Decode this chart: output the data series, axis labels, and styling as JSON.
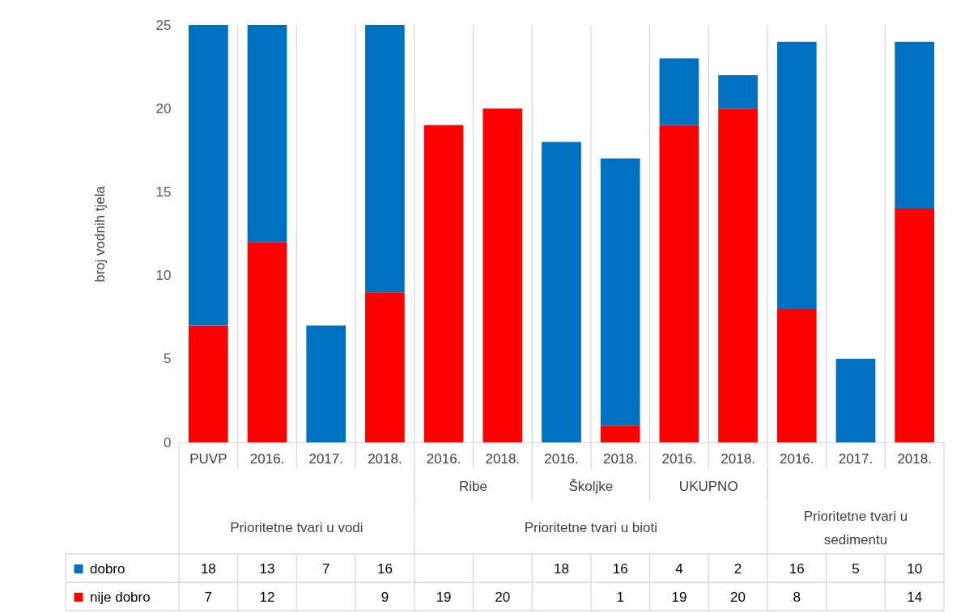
{
  "chart_data": {
    "type": "bar",
    "stacked": true,
    "ylabel": "broj vodnih tjela",
    "categories": [
      "PUVP",
      "2016.",
      "2017.",
      "2018.",
      "2016.",
      "2018.",
      "2016.",
      "2018.",
      "2016.",
      "2018.",
      "2016.",
      "2017.",
      "2018."
    ],
    "series": [
      {
        "name": "nije dobro",
        "color": "#ff0000",
        "values": [
          7,
          12,
          null,
          9,
          19,
          20,
          null,
          1,
          19,
          20,
          8,
          null,
          14
        ]
      },
      {
        "name": "dobro",
        "color": "#0070c0",
        "values": [
          18,
          13,
          7,
          16,
          null,
          null,
          18,
          16,
          4,
          2,
          16,
          5,
          10
        ]
      }
    ],
    "annotations": [
      "Ribe",
      "Školjke",
      "UKUPNO",
      "Prioritetne tvari u vodi",
      "Prioritetne tvari u bioti",
      "Prioritetne tvari u sedimentu"
    ],
    "ylim": [
      0,
      25
    ],
    "yticks": [
      0,
      5,
      10,
      15,
      20,
      25
    ],
    "grid": false,
    "legend": "bottom",
    "data_labels": true
  }
}
